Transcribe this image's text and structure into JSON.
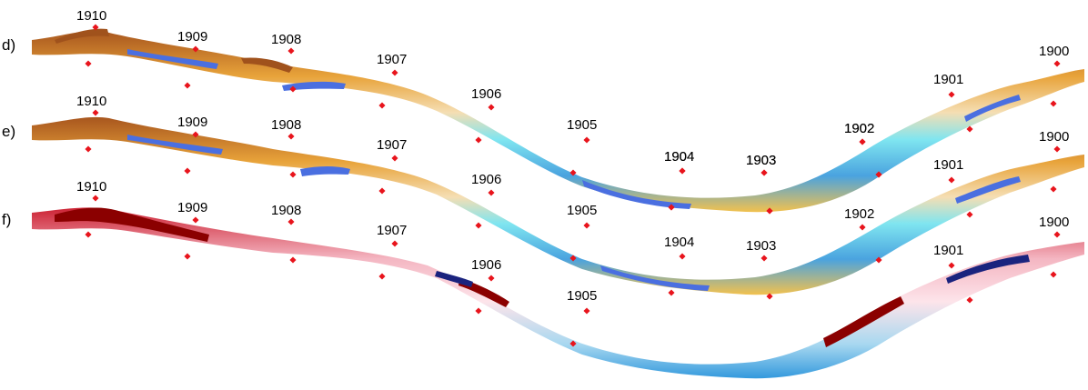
{
  "panels": [
    {
      "id": "d",
      "label": "d)",
      "colormap": "depth"
    },
    {
      "id": "e",
      "label": "e)",
      "colormap": "depth"
    },
    {
      "id": "f",
      "label": "f)",
      "colormap": "difference"
    }
  ],
  "stations": [
    "1910",
    "1909",
    "1908",
    "1907",
    "1906",
    "1905",
    "1904",
    "1903",
    "1902",
    "1901",
    "1900"
  ],
  "colors": {
    "marker": "#e8141c",
    "depth": [
      "#8b4513",
      "#c46a2a",
      "#e8a33a",
      "#f2c14e",
      "#f5deb3",
      "#7fe5f0",
      "#4aa3df",
      "#3b5bdb"
    ],
    "difference": [
      "#8b0000",
      "#cc2233",
      "#f4b6c2",
      "#fde4ea",
      "#a8d8f0",
      "#3399dd",
      "#1a237e"
    ]
  }
}
